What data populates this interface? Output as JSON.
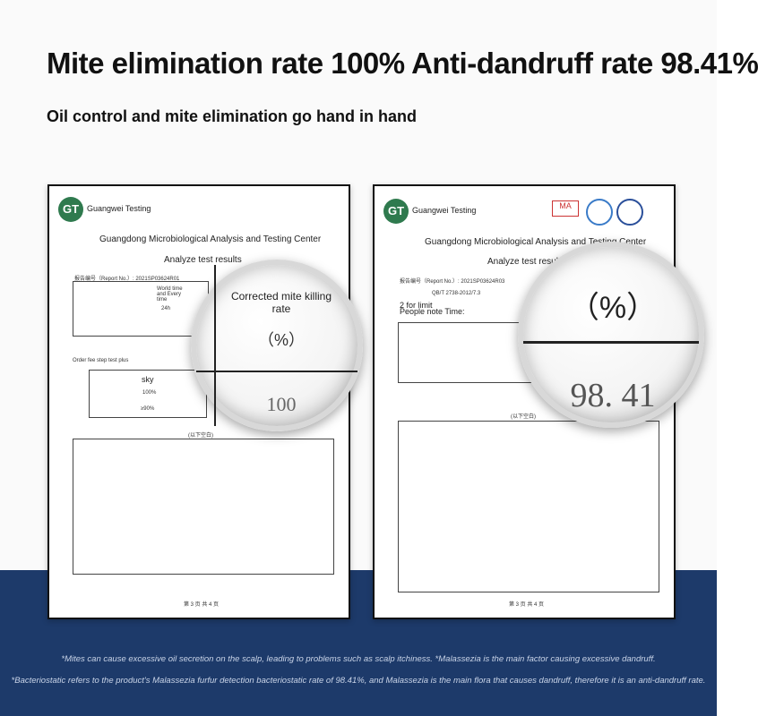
{
  "header": {
    "title": "Mite elimination rate 100% Anti-dandruff rate 98.41%",
    "subtitle": "Oil control and mite elimination go hand in hand"
  },
  "documents": [
    {
      "lab": "Guangwei Testing",
      "center": "Guangdong Microbiological Analysis and Testing Center",
      "section": "Analyze test results",
      "report_no": "报告编号（Report No.）: 2021SP03624R01",
      "row_labels": [
        "World time and Every time",
        "24h",
        "Order fee step test plus",
        "sky",
        "100%",
        "≥90%"
      ],
      "blank": "(以下空白)",
      "page": "第 3 页 共 4 页",
      "lens": {
        "label": "Corrected mite killing rate",
        "unit": "（%）",
        "value": "100"
      }
    },
    {
      "lab": "Guangwei Testing",
      "center": "Guangdong Microbiological Analysis and Testing Center",
      "section": "Analyze test results",
      "report_no": "报告编号（Report No.）: 2021SP03624R03",
      "row_labels": [
        "2 for limit",
        "People note Time:",
        "QB/T 2738-2012/7.3"
      ],
      "blank": "(以下空白)",
      "page": "第 3 页 共 4 页",
      "lens": {
        "unit": "（%）",
        "value": "98. 41"
      }
    }
  ],
  "footnotes": [
    "*Mites can cause excessive oil secretion on the scalp, leading to problems such as scalp itchiness. *Malassezia is the main factor causing excessive dandruff.",
    "*Bacteriostatic refers to the product's Malassezia furfur detection bacteriostatic rate of 98.41%, and Malassezia is the main flora that causes dandruff, therefore it is an anti-dandruff rate."
  ]
}
